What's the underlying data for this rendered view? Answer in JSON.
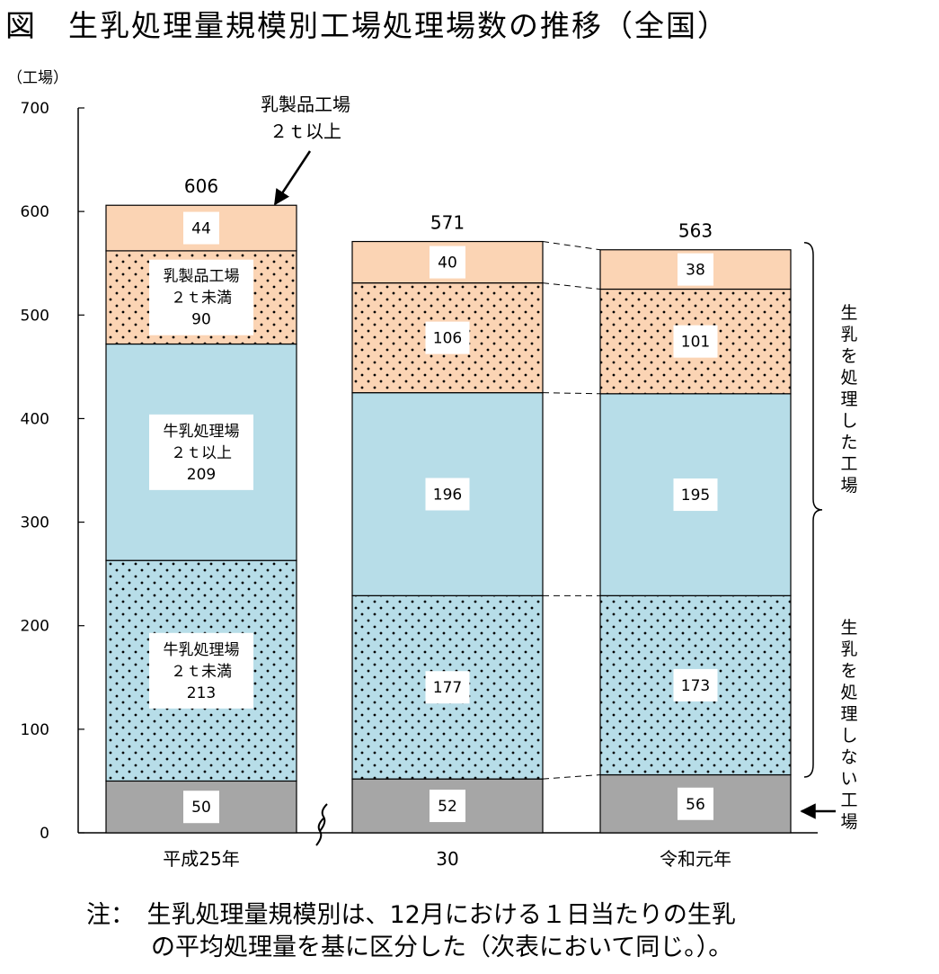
{
  "title": "図　生乳処理量規模別工場処理場数の推移（全国）",
  "chart_data": {
    "type": "bar",
    "stacked": true,
    "ylabel": "（工場）",
    "ylim": [
      0,
      700
    ],
    "yticks": [
      "0",
      "100",
      "200",
      "300",
      "400",
      "500",
      "600",
      "700"
    ],
    "categories": [
      "平成25年",
      "30",
      "令和元年"
    ],
    "totals": [
      606,
      571,
      563
    ],
    "series": [
      {
        "name": "",
        "values": [
          50,
          52,
          56
        ],
        "color": "#a6a6a6",
        "dotted": false
      },
      {
        "name": "牛乳処理場\n２ｔ未満",
        "values": [
          213,
          177,
          173
        ],
        "color": "#b7dde8",
        "dotted": true
      },
      {
        "name": "牛乳処理場\n２ｔ以上",
        "values": [
          209,
          196,
          195
        ],
        "color": "#b7dde8",
        "dotted": false
      },
      {
        "name": "乳製品工場\n２ｔ未満",
        "values": [
          90,
          106,
          101
        ],
        "color": "#fbd4b4",
        "dotted": true
      },
      {
        "name": "",
        "values": [
          44,
          40,
          38
        ],
        "color": "#fbd4b4",
        "dotted": false
      }
    ],
    "callout": "乳製品工場\n２ｔ以上",
    "brace_top": "生乳を処理した工場",
    "brace_bottom": "生乳を処理しない工場",
    "grid": false
  },
  "note": {
    "label": "注：",
    "line1": "生乳処理量規模別は、12月における１日当たりの生乳",
    "line2": "の平均処理量を基に区分した（次表において同じ。）。"
  }
}
